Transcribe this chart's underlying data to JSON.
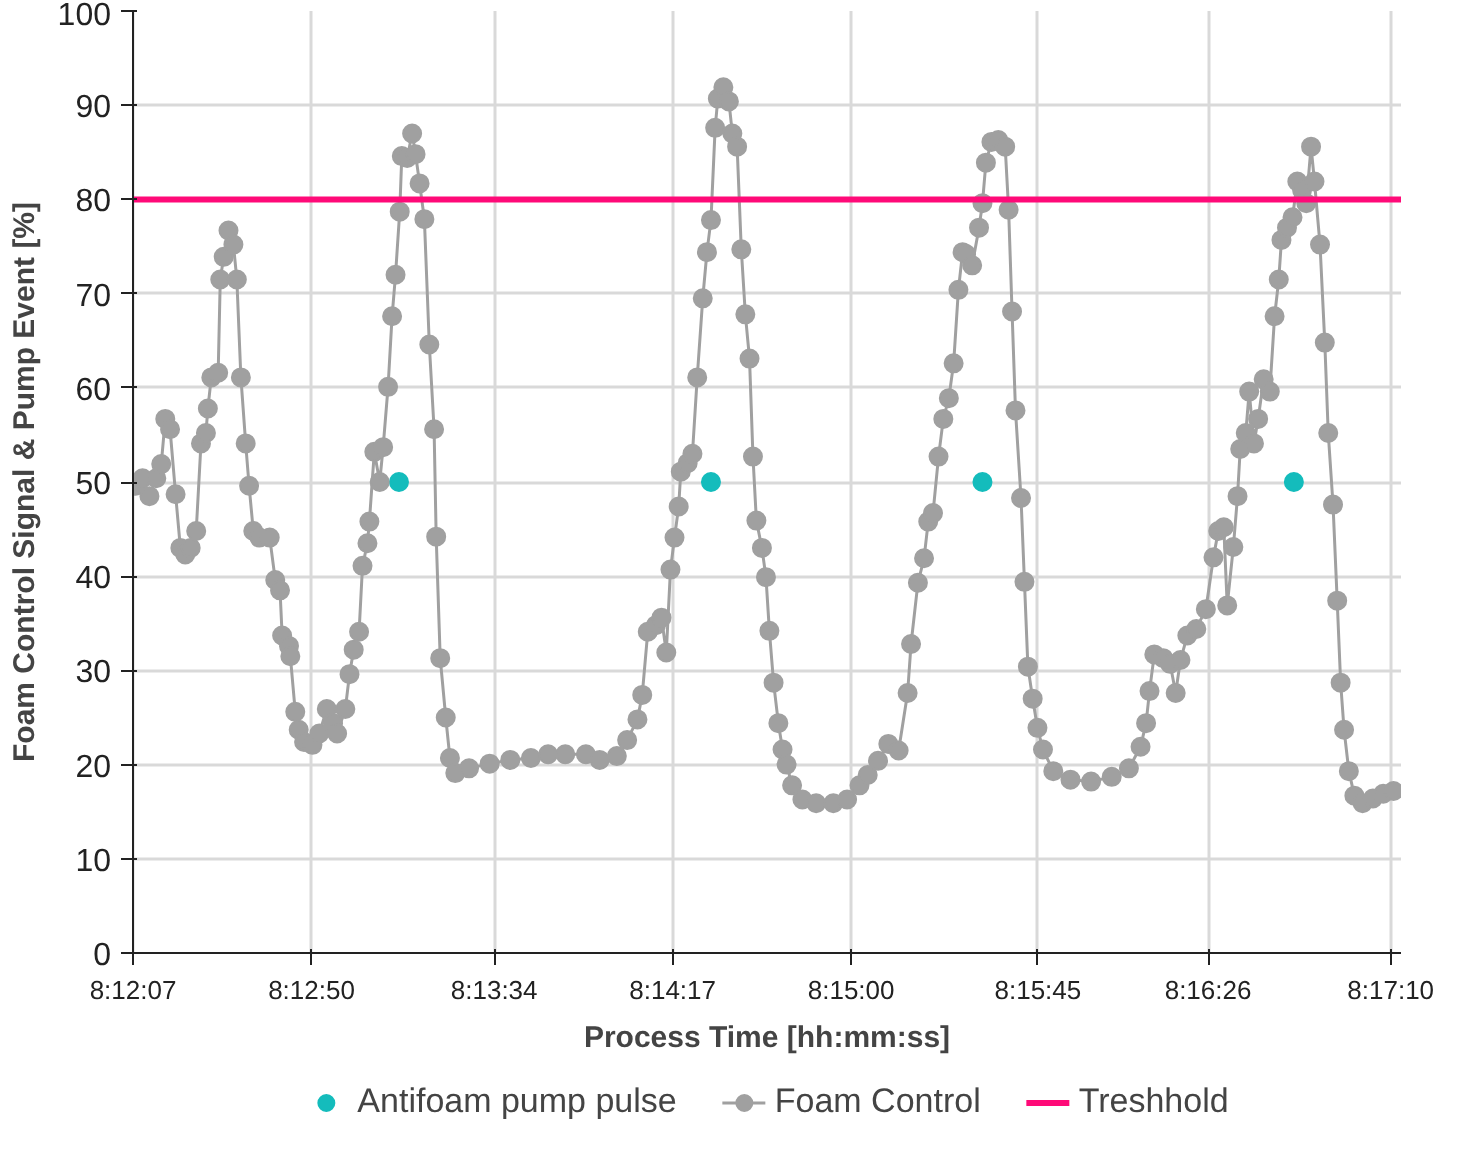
{
  "chart_data": {
    "type": "line",
    "xlabel": "Process Time [hh:mm:ss]",
    "ylabel": "Foam Control Signal & Pump Event [%]",
    "xlim": [
      8.20194,
      8.2868
    ],
    "ylim": [
      0,
      100
    ],
    "xticks": [
      {
        "value": 8.201944,
        "label": "8:12:07"
      },
      {
        "value": 8.213889,
        "label": "8:12:50"
      },
      {
        "value": 8.226111,
        "label": "8:13:34"
      },
      {
        "value": 8.238056,
        "label": "8:14:17"
      },
      {
        "value": 8.25,
        "label": "8:15:00"
      },
      {
        "value": 8.2625,
        "label": "8:15:45"
      },
      {
        "value": 8.273889,
        "label": "8:16:26"
      },
      {
        "value": 8.286111,
        "label": "8:17:10"
      }
    ],
    "yticks": [
      0,
      10,
      20,
      30,
      40,
      50,
      60,
      70,
      80,
      90,
      100
    ],
    "grid": true,
    "legend": "bottom",
    "marker": "circle",
    "line_style": "solid",
    "ref_lines": [
      {
        "axis": "y",
        "value": 80,
        "label": "Treshhold",
        "color": "#ff0a78",
        "line_style": "solid"
      }
    ],
    "series": [
      {
        "name": "Antifoam pump pulse",
        "type": "scatter",
        "color": "#14bcbc",
        "x": [
          8.21974,
          8.24062,
          8.25879,
          8.27963
        ],
        "values": [
          50,
          50,
          50,
          50
        ]
      },
      {
        "name": "Foam Control",
        "type": "line",
        "color": "#a0a0a0",
        "x": [
          8.20212,
          8.20258,
          8.20304,
          8.2035,
          8.20383,
          8.2041,
          8.20442,
          8.20479,
          8.20511,
          8.20544,
          8.2058,
          8.20617,
          8.20649,
          8.20682,
          8.20695,
          8.20718,
          8.20764,
          8.20778,
          8.20801,
          8.20833,
          8.20866,
          8.20889,
          8.20916,
          8.20948,
          8.20971,
          8.20999,
          8.2104,
          8.21109,
          8.21146,
          8.21178,
          8.21192,
          8.21238,
          8.21247,
          8.2128,
          8.21303,
          8.21339,
          8.21395,
          8.21441,
          8.21491,
          8.21533,
          8.2156,
          8.21615,
          8.21643,
          8.21671,
          8.21707,
          8.2173,
          8.21763,
          8.21776,
          8.21809,
          8.21845,
          8.21868,
          8.21901,
          8.21928,
          8.21951,
          8.21979,
          8.21993,
          8.22029,
          8.22062,
          8.22085,
          8.22112,
          8.22144,
          8.22177,
          8.22209,
          8.22223,
          8.2225,
          8.22287,
          8.22315,
          8.22351,
          8.22443,
          8.22581,
          8.22719,
          8.22857,
          8.22972,
          8.23087,
          8.23225,
          8.23317,
          8.23432,
          8.23501,
          8.2357,
          8.23602,
          8.23639,
          8.23694,
          8.23731,
          8.23763,
          8.23791,
          8.23818,
          8.23846,
          8.2386,
          8.23906,
          8.23938,
          8.2397,
          8.24007,
          8.24035,
          8.24062,
          8.2409,
          8.24108,
          8.24145,
          8.24182,
          8.24205,
          8.24237,
          8.24265,
          8.24292,
          8.2432,
          8.24343,
          8.24366,
          8.24403,
          8.2443,
          8.24453,
          8.24481,
          8.24513,
          8.24541,
          8.24568,
          8.24605,
          8.24674,
          8.24766,
          8.24881,
          8.24973,
          8.25056,
          8.25111,
          8.2518,
          8.25249,
          8.25318,
          8.25378,
          8.25401,
          8.25447,
          8.25488,
          8.25516,
          8.25548,
          8.25585,
          8.25617,
          8.25654,
          8.25686,
          8.25718,
          8.25746,
          8.25769,
          8.2581,
          8.25856,
          8.25879,
          8.25902,
          8.25939,
          8.25985,
          8.26031,
          8.26054,
          8.26077,
          8.261,
          8.26137,
          8.2616,
          8.26183,
          8.26215,
          8.26247,
          8.26284,
          8.26353,
          8.26468,
          8.26606,
          8.26744,
          8.26859,
          8.26937,
          8.26974,
          8.26997,
          8.27029,
          8.27089,
          8.27135,
          8.27172,
          8.27204,
          8.2725,
          8.2731,
          8.27374,
          8.27425,
          8.27457,
          8.27494,
          8.27517,
          8.27558,
          8.27586,
          8.27604,
          8.27641,
          8.27664,
          8.27696,
          8.27724,
          8.27761,
          8.27802,
          8.27834,
          8.27862,
          8.2788,
          8.27917,
          8.27954,
          8.27986,
          8.28018,
          8.28046,
          8.28078,
          8.28101,
          8.28138,
          8.2817,
          8.28193,
          8.28225,
          8.28253,
          8.28276,
          8.28299,
          8.28331,
          8.28368,
          8.28423,
          8.28492,
          8.28561,
          8.2863
        ],
        "values": [
          49.6,
          50.4,
          48.5,
          50.4,
          51.9,
          56.7,
          55.6,
          48.7,
          43,
          42.3,
          43,
          44.8,
          54.1,
          55.2,
          57.8,
          61.1,
          61.6,
          71.5,
          73.9,
          76.7,
          75.2,
          71.5,
          61.1,
          54.1,
          49.6,
          44.8,
          44.1,
          44.1,
          39.6,
          38.5,
          33.7,
          32.6,
          31.5,
          25.6,
          23.7,
          22.4,
          22.1,
          23.3,
          25.9,
          24.4,
          23.3,
          25.9,
          29.6,
          32.2,
          34.1,
          41.1,
          43.5,
          45.8,
          53.2,
          50,
          53.7,
          60.1,
          67.6,
          72,
          78.7,
          84.6,
          84.4,
          87,
          84.8,
          81.7,
          77.9,
          64.6,
          55.6,
          44.2,
          31.3,
          25,
          20.7,
          19.1,
          19.6,
          20.1,
          20.5,
          20.7,
          21.1,
          21.1,
          21.1,
          20.5,
          20.9,
          22.6,
          24.8,
          27.4,
          34.1,
          34.8,
          35.6,
          31.9,
          40.7,
          44.1,
          47.4,
          51.1,
          52,
          53,
          61.1,
          69.5,
          74.4,
          77.8,
          87.6,
          90.7,
          91.9,
          90.4,
          87,
          85.6,
          74.7,
          67.8,
          63.1,
          52.7,
          45.9,
          43,
          39.9,
          34.2,
          28.7,
          24.4,
          21.6,
          20,
          17.8,
          16.3,
          15.9,
          15.9,
          16.3,
          17.8,
          18.9,
          20.4,
          22.2,
          21.5,
          27.6,
          32.8,
          39.3,
          41.9,
          45.8,
          46.7,
          52.7,
          56.7,
          58.9,
          62.6,
          70.4,
          74.4,
          74.2,
          73,
          77,
          79.6,
          83.9,
          86.1,
          86.3,
          85.6,
          78.9,
          68.1,
          57.6,
          48.3,
          39.4,
          30.4,
          27,
          23.9,
          21.6,
          19.3,
          18.4,
          18.2,
          18.7,
          19.6,
          21.9,
          24.4,
          27.8,
          31.7,
          31.3,
          30.7,
          27.6,
          31.1,
          33.7,
          34.4,
          36.5,
          42,
          44.8,
          45.2,
          36.9,
          43.1,
          48.5,
          53.5,
          55.2,
          59.6,
          54.1,
          56.7,
          60.9,
          59.6,
          67.6,
          71.5,
          75.7,
          77,
          78.1,
          81.9,
          81,
          79.6,
          85.6,
          81.9,
          75.2,
          64.8,
          55.2,
          47.6,
          37.4,
          28.7,
          23.7,
          19.3,
          16.7,
          15.9,
          16.4,
          16.9,
          17.2
        ]
      }
    ]
  }
}
